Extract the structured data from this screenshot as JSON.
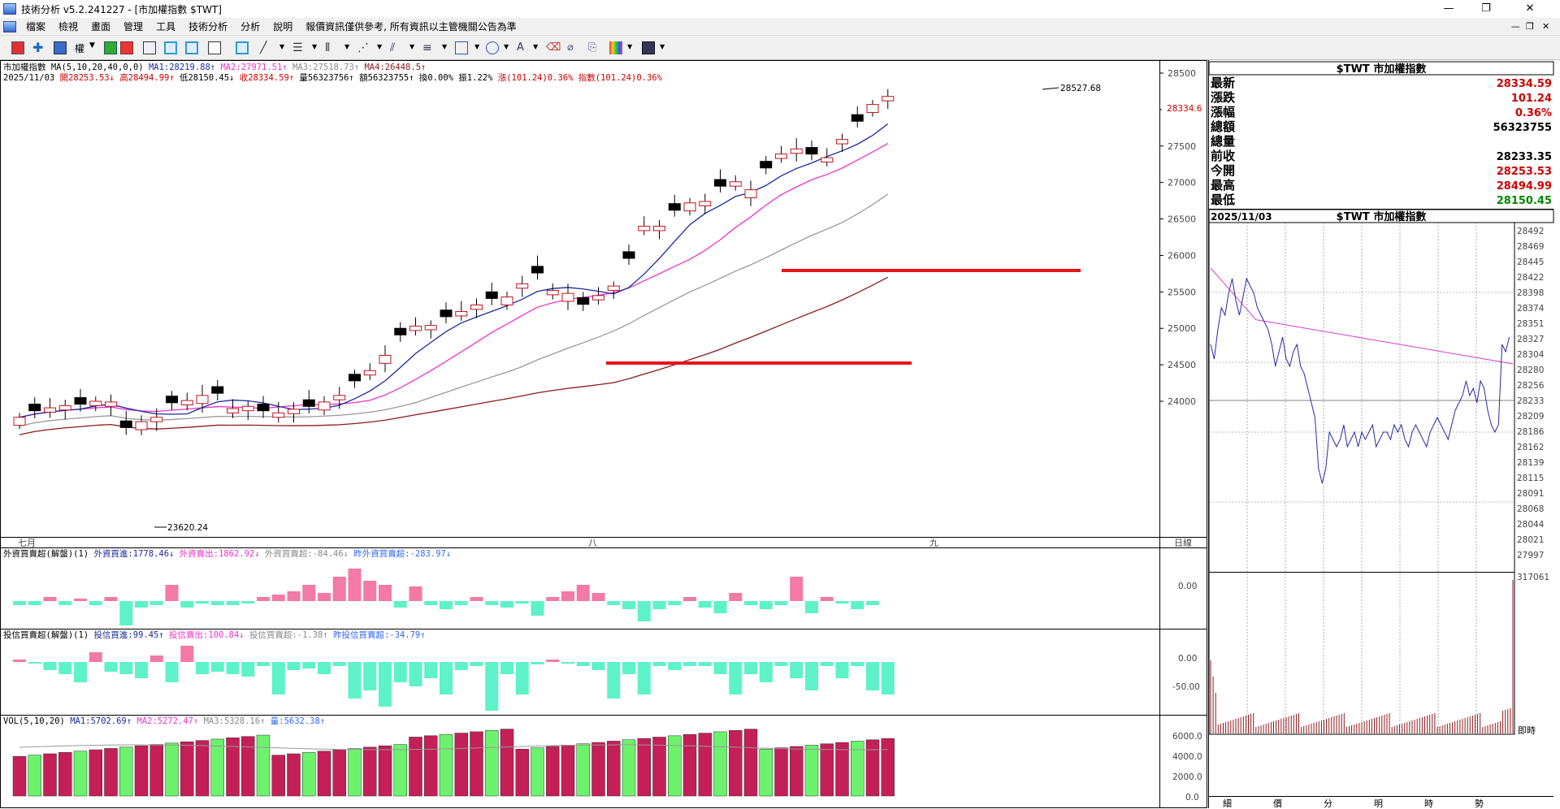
{
  "window": {
    "title": "技術分析 v5.2.241227 - [市加權指數 $TWT]"
  },
  "menu": [
    "檔案",
    "檢視",
    "畫面",
    "管理",
    "工具",
    "技術分析",
    "分析",
    "說明",
    "報價資訊僅供參考, 所有資訊以主管機關公告為準"
  ],
  "toolbar": {
    "weight_label": "權"
  },
  "chart": {
    "header1": [
      {
        "text": "市加權指數 MA(5,10,20,40,0,0)",
        "color": "#000000"
      },
      {
        "text": "MA1:28219.88↑",
        "color": "#1a2a9c"
      },
      {
        "text": "MA2:27971.51↑",
        "color": "#ee33cc"
      },
      {
        "text": "MA3:27518.73↑",
        "color": "#888888"
      },
      {
        "text": "MA4:26448.5↑",
        "color": "#8b1a1a"
      }
    ],
    "header2": [
      {
        "text": "2025/11/03",
        "color": "#000000"
      },
      {
        "text": "開28253.53↓",
        "color": "#cc0000"
      },
      {
        "text": "高28494.99↑",
        "color": "#cc0000"
      },
      {
        "text": "低28150.45↓",
        "color": "#000000"
      },
      {
        "text": "收28334.59↑",
        "color": "#cc0000"
      },
      {
        "text": "量56323756↑",
        "color": "#000000"
      },
      {
        "text": "額56323755↑",
        "color": "#000000"
      },
      {
        "text": "換0.00%",
        "color": "#000000"
      },
      {
        "text": "振1.22%",
        "color": "#000000"
      },
      {
        "text": "漲(101.24)0.36%",
        "color": "#cc0000"
      },
      {
        "text": "指數(101.24)0.36%",
        "color": "#cc0000"
      }
    ],
    "y_labels": [
      "28500",
      "28000",
      "27500",
      "27000",
      "26500",
      "26000",
      "25500",
      "25000",
      "24500",
      "24000"
    ],
    "current_tag": "28334.6",
    "high_label": "28527.68",
    "low_label": "23620.24",
    "x_labels": [
      "七月",
      "八",
      "九"
    ],
    "x_unit": "日線",
    "panel2": {
      "items": [
        {
          "text": "外資買賣超(解盤)(1)",
          "color": "#000000"
        },
        {
          "text": "外資買進:1778.46↓",
          "color": "#1a2a9c"
        },
        {
          "text": "外資賣出:1862.92↓",
          "color": "#ee33cc"
        },
        {
          "text": "外資買賣超:-84.46↓",
          "color": "#888888"
        },
        {
          "text": "昨外資買賣超:-283.97↓",
          "color": "#3366ff"
        }
      ],
      "y_labels": [
        "0.00"
      ]
    },
    "panel3": {
      "items": [
        {
          "text": "投信買賣超(解盤)(1)",
          "color": "#000000"
        },
        {
          "text": "投信買進:99.45↑",
          "color": "#1a2a9c"
        },
        {
          "text": "投信賣出:100.84↓",
          "color": "#ee33cc"
        },
        {
          "text": "投信買賣超:-1.38↑",
          "color": "#888888"
        },
        {
          "text": "昨投信買賣超:-34.79↑",
          "color": "#3366ff"
        }
      ],
      "y_labels": [
        "0.00",
        "-50.00"
      ]
    },
    "panel4": {
      "items": [
        {
          "text": "VOL(5,10,20)",
          "color": "#000000"
        },
        {
          "text": "MA1:5702.69↑",
          "color": "#1a2a9c"
        },
        {
          "text": "MA2:5272.47↑",
          "color": "#ee33cc"
        },
        {
          "text": "MA3:5328.16↑",
          "color": "#888888"
        },
        {
          "text": "量:5632.38↑",
          "color": "#3366ff"
        }
      ],
      "y_labels": [
        "6000.0",
        "4000.0",
        "2000.0",
        "0.0"
      ]
    }
  },
  "quote": {
    "title": "$TWT 市加權指數",
    "rows": [
      {
        "label": "最新",
        "value": "28334.59",
        "color": "#cc0000"
      },
      {
        "label": "漲跌",
        "value": "101.24",
        "color": "#cc0000"
      },
      {
        "label": "漲幅",
        "value": "0.36%",
        "color": "#cc0000"
      },
      {
        "label": "總額",
        "value": "56323755",
        "color": "#000000"
      },
      {
        "label": "總量",
        "value": "",
        "color": "#000000"
      },
      {
        "label": "前收",
        "value": "28233.35",
        "color": "#000000"
      },
      {
        "label": "今開",
        "value": "28253.53",
        "color": "#cc0000"
      },
      {
        "label": "最高",
        "value": "28494.99",
        "color": "#cc0000"
      },
      {
        "label": "最低",
        "value": "28150.45",
        "color": "#008800"
      }
    ]
  },
  "intraday": {
    "date": "2025/11/03",
    "title": "$TWT 市加權指數",
    "y_labels": [
      "28492",
      "28469",
      "28445",
      "28422",
      "28398",
      "28374",
      "28351",
      "28327",
      "28304",
      "28280",
      "28256",
      "28233",
      "28209",
      "28186",
      "28162",
      "28139",
      "28115",
      "28091",
      "28068",
      "28044",
      "28021",
      "27997"
    ],
    "vol_label": "317061",
    "vol_unit": "即時",
    "bottom_tabs": [
      "細",
      "價",
      "分",
      "明",
      "時",
      "勢"
    ]
  }
}
